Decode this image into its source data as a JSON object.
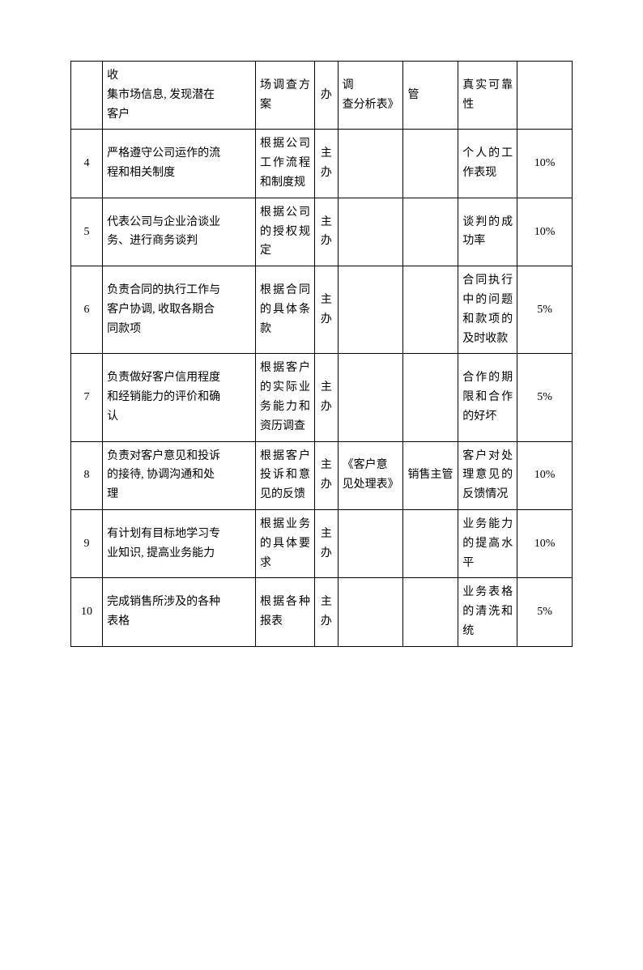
{
  "table": {
    "rows": [
      {
        "num": "",
        "desc": "收\n集市场信息, 发现潜在\n客户",
        "basis": "场调查方案",
        "role1": "办",
        "doc": "调\n查分析表》",
        "role2": "管",
        "eval": "真实可靠性",
        "pct": ""
      },
      {
        "num": "4",
        "desc": "严格遵守公司运作的流\n程和相关制度",
        "basis": "根据公司工作流程和制度规",
        "role1": "主办",
        "doc": "",
        "role2": "",
        "eval": "个人的工作表现",
        "pct": "10%"
      },
      {
        "num": "5",
        "desc": "代表公司与企业洽谈业\n务、进行商务谈判",
        "basis": "根据公司的授权规定",
        "role1": "主办",
        "doc": "",
        "role2": "",
        "eval": "谈判的成功率",
        "pct": "10%"
      },
      {
        "num": "6",
        "desc": "负责合同的执行工作与\n客户协调, 收取各期合\n同款项",
        "basis": "根据合同的具体条款",
        "role1": "主办",
        "doc": "",
        "role2": "",
        "eval": "合同执行中的问题和款项的及时收款",
        "pct": "5%"
      },
      {
        "num": "7",
        "desc": "负责做好客户信用程度\n和经销能力的评价和确\n认",
        "basis": "根据客户的实际业务能力和资历调查",
        "role1": "主办",
        "doc": "",
        "role2": "",
        "eval": "合作的期限和合作的好坏",
        "pct": "5%"
      },
      {
        "num": "8",
        "desc": "负责对客户意见和投诉\n的接待, 协调沟通和处\n理",
        "basis": "根据客户投诉和意见的反馈",
        "role1": "主办",
        "doc": "《客户意\n见处理表》",
        "role2": "销售主管",
        "eval": "客户对处理意见的反馈情况",
        "pct": "10%"
      },
      {
        "num": "9",
        "desc": "有计划有目标地学习专\n业知识, 提高业务能力",
        "basis": "根据业务的具体要求",
        "role1": "主办",
        "doc": "",
        "role2": "",
        "eval": "业务能力的提高水平",
        "pct": "10%"
      },
      {
        "num": "10",
        "desc": "完成销售所涉及的各种\n表格",
        "basis": "根据各种报表",
        "role1": "主办",
        "doc": "",
        "role2": "",
        "eval": "业务表格的清洗和统",
        "pct": "5%"
      }
    ],
    "column_widths": {
      "num": 30,
      "desc": 145,
      "basis": 56,
      "role1": 22,
      "doc": 62,
      "role2": 52,
      "eval": 56,
      "pct": 52
    },
    "border_color": "#000000",
    "background_color": "#ffffff",
    "text_color": "#000000",
    "font_size": 14,
    "line_height": 1.7
  }
}
